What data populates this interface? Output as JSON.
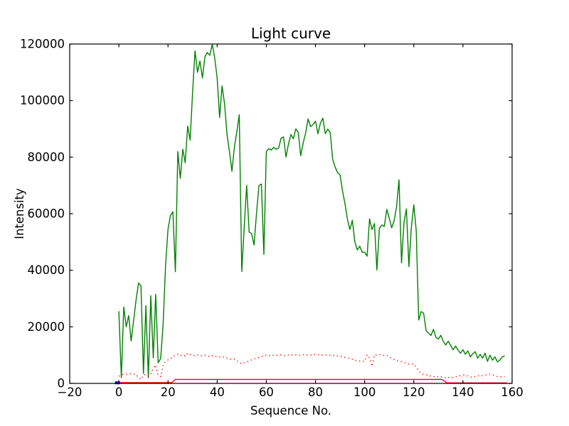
{
  "figure": {
    "title": "Light curve",
    "xlabel": "Sequence No.",
    "ylabel": "Intensity"
  },
  "chart_data": {
    "type": "line",
    "title": "Light curve",
    "xlabel": "Sequence No.",
    "ylabel": "Intensity",
    "xlim": [
      -20,
      160
    ],
    "ylim": [
      0,
      120000
    ],
    "grid": false,
    "legend": "none",
    "tick_direction": "in",
    "x_ticks": [
      -20,
      0,
      20,
      40,
      60,
      80,
      100,
      120,
      140,
      160
    ],
    "x_tick_labels": [
      "−20",
      "0",
      "20",
      "40",
      "60",
      "80",
      "100",
      "120",
      "140",
      "160"
    ],
    "y_ticks": [
      0,
      20000,
      40000,
      60000,
      80000,
      100000,
      120000
    ],
    "y_tick_labels": [
      "0",
      "20000",
      "40000",
      "60000",
      "80000",
      "100000",
      "120000"
    ],
    "colors": {
      "green_line": "#008000",
      "red_lines": "#ff0000",
      "blue_segment": "#0000ff",
      "axes": "#000000"
    },
    "series": [
      {
        "name": "green-solid-line",
        "color": "#008000",
        "style": "solid",
        "width": 1.4,
        "x_start": 0,
        "x_step": 1,
        "values": [
          25500,
          2000,
          27000,
          20000,
          24000,
          15000,
          22000,
          29500,
          35500,
          34500,
          3500,
          27500,
          2000,
          31000,
          9000,
          31500,
          7300,
          8800,
          20700,
          41800,
          54500,
          59400,
          60700,
          39500,
          82000,
          72500,
          82800,
          78000,
          91000,
          86000,
          103000,
          117600,
          110000,
          114000,
          108000,
          115500,
          117000,
          116000,
          119900,
          115000,
          108000,
          94000,
          105200,
          98900,
          88000,
          82000,
          75000,
          83500,
          89000,
          95000,
          39600,
          55000,
          70000,
          53500,
          53000,
          48900,
          60000,
          70000,
          70500,
          45600,
          82000,
          83000,
          82500,
          83500,
          82800,
          83200,
          86700,
          87200,
          80000,
          84500,
          88000,
          86500,
          90000,
          88700,
          80500,
          85000,
          88500,
          93500,
          90800,
          91500,
          92700,
          88300,
          92000,
          93800,
          88300,
          89900,
          88700,
          79300,
          76500,
          74500,
          73700,
          68000,
          63600,
          58000,
          54400,
          57700,
          50200,
          47200,
          48500,
          46400,
          46400,
          45000,
          58200,
          54400,
          56500,
          40100,
          54800,
          56000,
          55500,
          61500,
          58500,
          55000,
          57500,
          62500,
          72000,
          42600,
          57000,
          61700,
          41300,
          55000,
          63200,
          54000,
          22400,
          25400,
          24800,
          18700,
          17800,
          17000,
          19100,
          16300,
          15700,
          17000,
          14900,
          13600,
          14900,
          13400,
          11900,
          13200,
          11800,
          10700,
          11900,
          10300,
          11500,
          9400,
          10500,
          11200,
          8900,
          10300,
          8900,
          10700,
          7800,
          10000,
          8200,
          9400,
          7600,
          8200,
          9400,
          9800
        ]
      },
      {
        "name": "red-dotted-line",
        "color": "#ff0000",
        "style": "dotted",
        "width": 1.4,
        "x_start": 0,
        "x_step": 1,
        "values": [
          2500,
          3000,
          3200,
          3300,
          3500,
          3400,
          3300,
          3200,
          2000,
          1400,
          2900,
          3200,
          2600,
          3400,
          5300,
          6500,
          2800,
          2400,
          6200,
          7800,
          8300,
          8600,
          9500,
          9900,
          10300,
          9800,
          10100,
          9600,
          10700,
          10200,
          10000,
          9800,
          10100,
          9900,
          9700,
          10000,
          9600,
          9500,
          9800,
          9400,
          9600,
          9300,
          9500,
          9200,
          9000,
          8600,
          8400,
          8600,
          8000,
          7500,
          6900,
          7300,
          7600,
          7900,
          8300,
          8600,
          8900,
          9200,
          9500,
          9700,
          10100,
          9800,
          10000,
          9900,
          10000,
          9900,
          10100,
          9800,
          9900,
          10000,
          10200,
          10000,
          10100,
          9900,
          10000,
          10100,
          10000,
          10200,
          10000,
          10100,
          10300,
          10100,
          10200,
          10000,
          10100,
          9900,
          10000,
          9800,
          9900,
          9700,
          9600,
          9400,
          9200,
          9000,
          8800,
          8500,
          8300,
          7800,
          7900,
          7700,
          7800,
          10100,
          9000,
          6000,
          10100,
          10000,
          10200,
          10000,
          9900,
          10000,
          9400,
          8900,
          8400,
          8100,
          7900,
          7700,
          7400,
          7200,
          6800,
          6900,
          6800,
          5900,
          4400,
          3600,
          3100,
          3000,
          2900,
          2500,
          2300,
          2500,
          2200,
          2400,
          2100,
          2000,
          2200,
          1900,
          2100,
          2300,
          2500,
          2800,
          3000,
          2900,
          2600,
          2300,
          2100,
          2400,
          2600,
          2800,
          2700,
          2900,
          3100,
          3300,
          3000,
          2700,
          2400,
          2200,
          2400,
          2300
        ]
      },
      {
        "name": "red-solid-line",
        "color": "#ff0000",
        "style": "solid",
        "width": 1.4,
        "points": [
          [
            0,
            250
          ],
          [
            21.5,
            250
          ],
          [
            23,
            1400
          ],
          [
            131.5,
            1400
          ],
          [
            133.5,
            180
          ],
          [
            158,
            180
          ]
        ]
      },
      {
        "name": "blue-segment",
        "color": "#0000ff",
        "style": "solid",
        "width": 4,
        "points": [
          [
            -1.6,
            200
          ],
          [
            0.5,
            200
          ]
        ]
      }
    ]
  }
}
